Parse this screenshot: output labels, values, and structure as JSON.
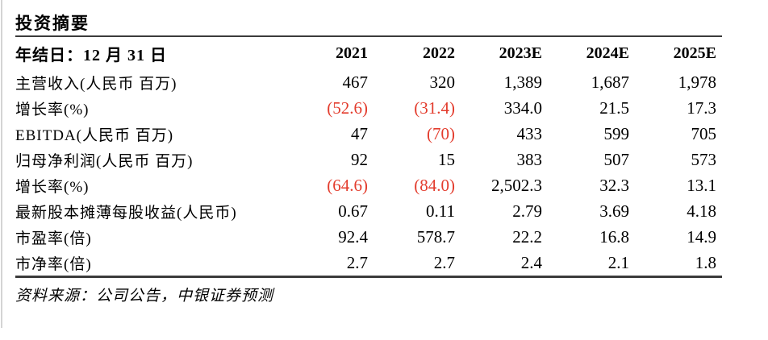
{
  "panel": {
    "title": "投资摘要",
    "source_note": "资料来源：公司公告，中银证券预测"
  },
  "colors": {
    "negative": "#e33c2d",
    "text": "#000000",
    "rule": "#3b3b3b"
  },
  "table": {
    "header_label": "年结日：12 月 31 日",
    "columns": [
      "2021",
      "2022",
      "2023E",
      "2024E",
      "2025E"
    ],
    "rows": [
      {
        "label": "主营收入(人民币 百万)",
        "values": [
          "467",
          "320",
          "1,389",
          "1,687",
          "1,978"
        ]
      },
      {
        "label": "增长率(%)",
        "values": [
          "(52.6)",
          "(31.4)",
          "334.0",
          "21.5",
          "17.3"
        ]
      },
      {
        "label": "EBITDA(人民币 百万)",
        "values": [
          "47",
          "(70)",
          "433",
          "599",
          "705"
        ]
      },
      {
        "label": "归母净利润(人民币 百万)",
        "values": [
          "92",
          "15",
          "383",
          "507",
          "573"
        ]
      },
      {
        "label": "增长率(%)",
        "values": [
          "(64.6)",
          "(84.0)",
          "2,502.3",
          "32.3",
          "13.1"
        ]
      },
      {
        "label": "最新股本摊薄每股收益(人民币)",
        "values": [
          "0.67",
          "0.11",
          "2.79",
          "3.69",
          "4.18"
        ]
      },
      {
        "label": "市盈率(倍)",
        "values": [
          "92.4",
          "578.7",
          "22.2",
          "16.8",
          "14.9"
        ]
      },
      {
        "label": "市净率(倍)",
        "values": [
          "2.7",
          "2.7",
          "2.4",
          "2.1",
          "1.8"
        ]
      }
    ]
  }
}
